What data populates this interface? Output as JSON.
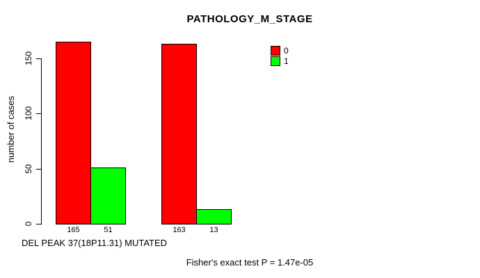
{
  "chart_data": {
    "type": "bar",
    "title": "PATHOLOGY_M_STAGE",
    "ylabel": "number of cases",
    "xlabel": "DEL PEAK 37(18P11.31) MUTATED",
    "footnote": "Fisher's exact test P = 1.47e-05",
    "categories": [
      "",
      ""
    ],
    "series": [
      {
        "name": "0",
        "color": "#ff0000",
        "values": [
          165,
          163
        ]
      },
      {
        "name": "1",
        "color": "#00ff00",
        "values": [
          51,
          13
        ]
      }
    ],
    "bar_value_labels": [
      "165",
      "51",
      "163",
      "13"
    ],
    "yticks": [
      0,
      50,
      100,
      150
    ],
    "ylim": [
      0,
      165
    ],
    "grid": false,
    "legend": {
      "position": "top-right",
      "entries": [
        {
          "label": "0",
          "color": "#ff0000"
        },
        {
          "label": "1",
          "color": "#00ff00"
        }
      ]
    }
  }
}
